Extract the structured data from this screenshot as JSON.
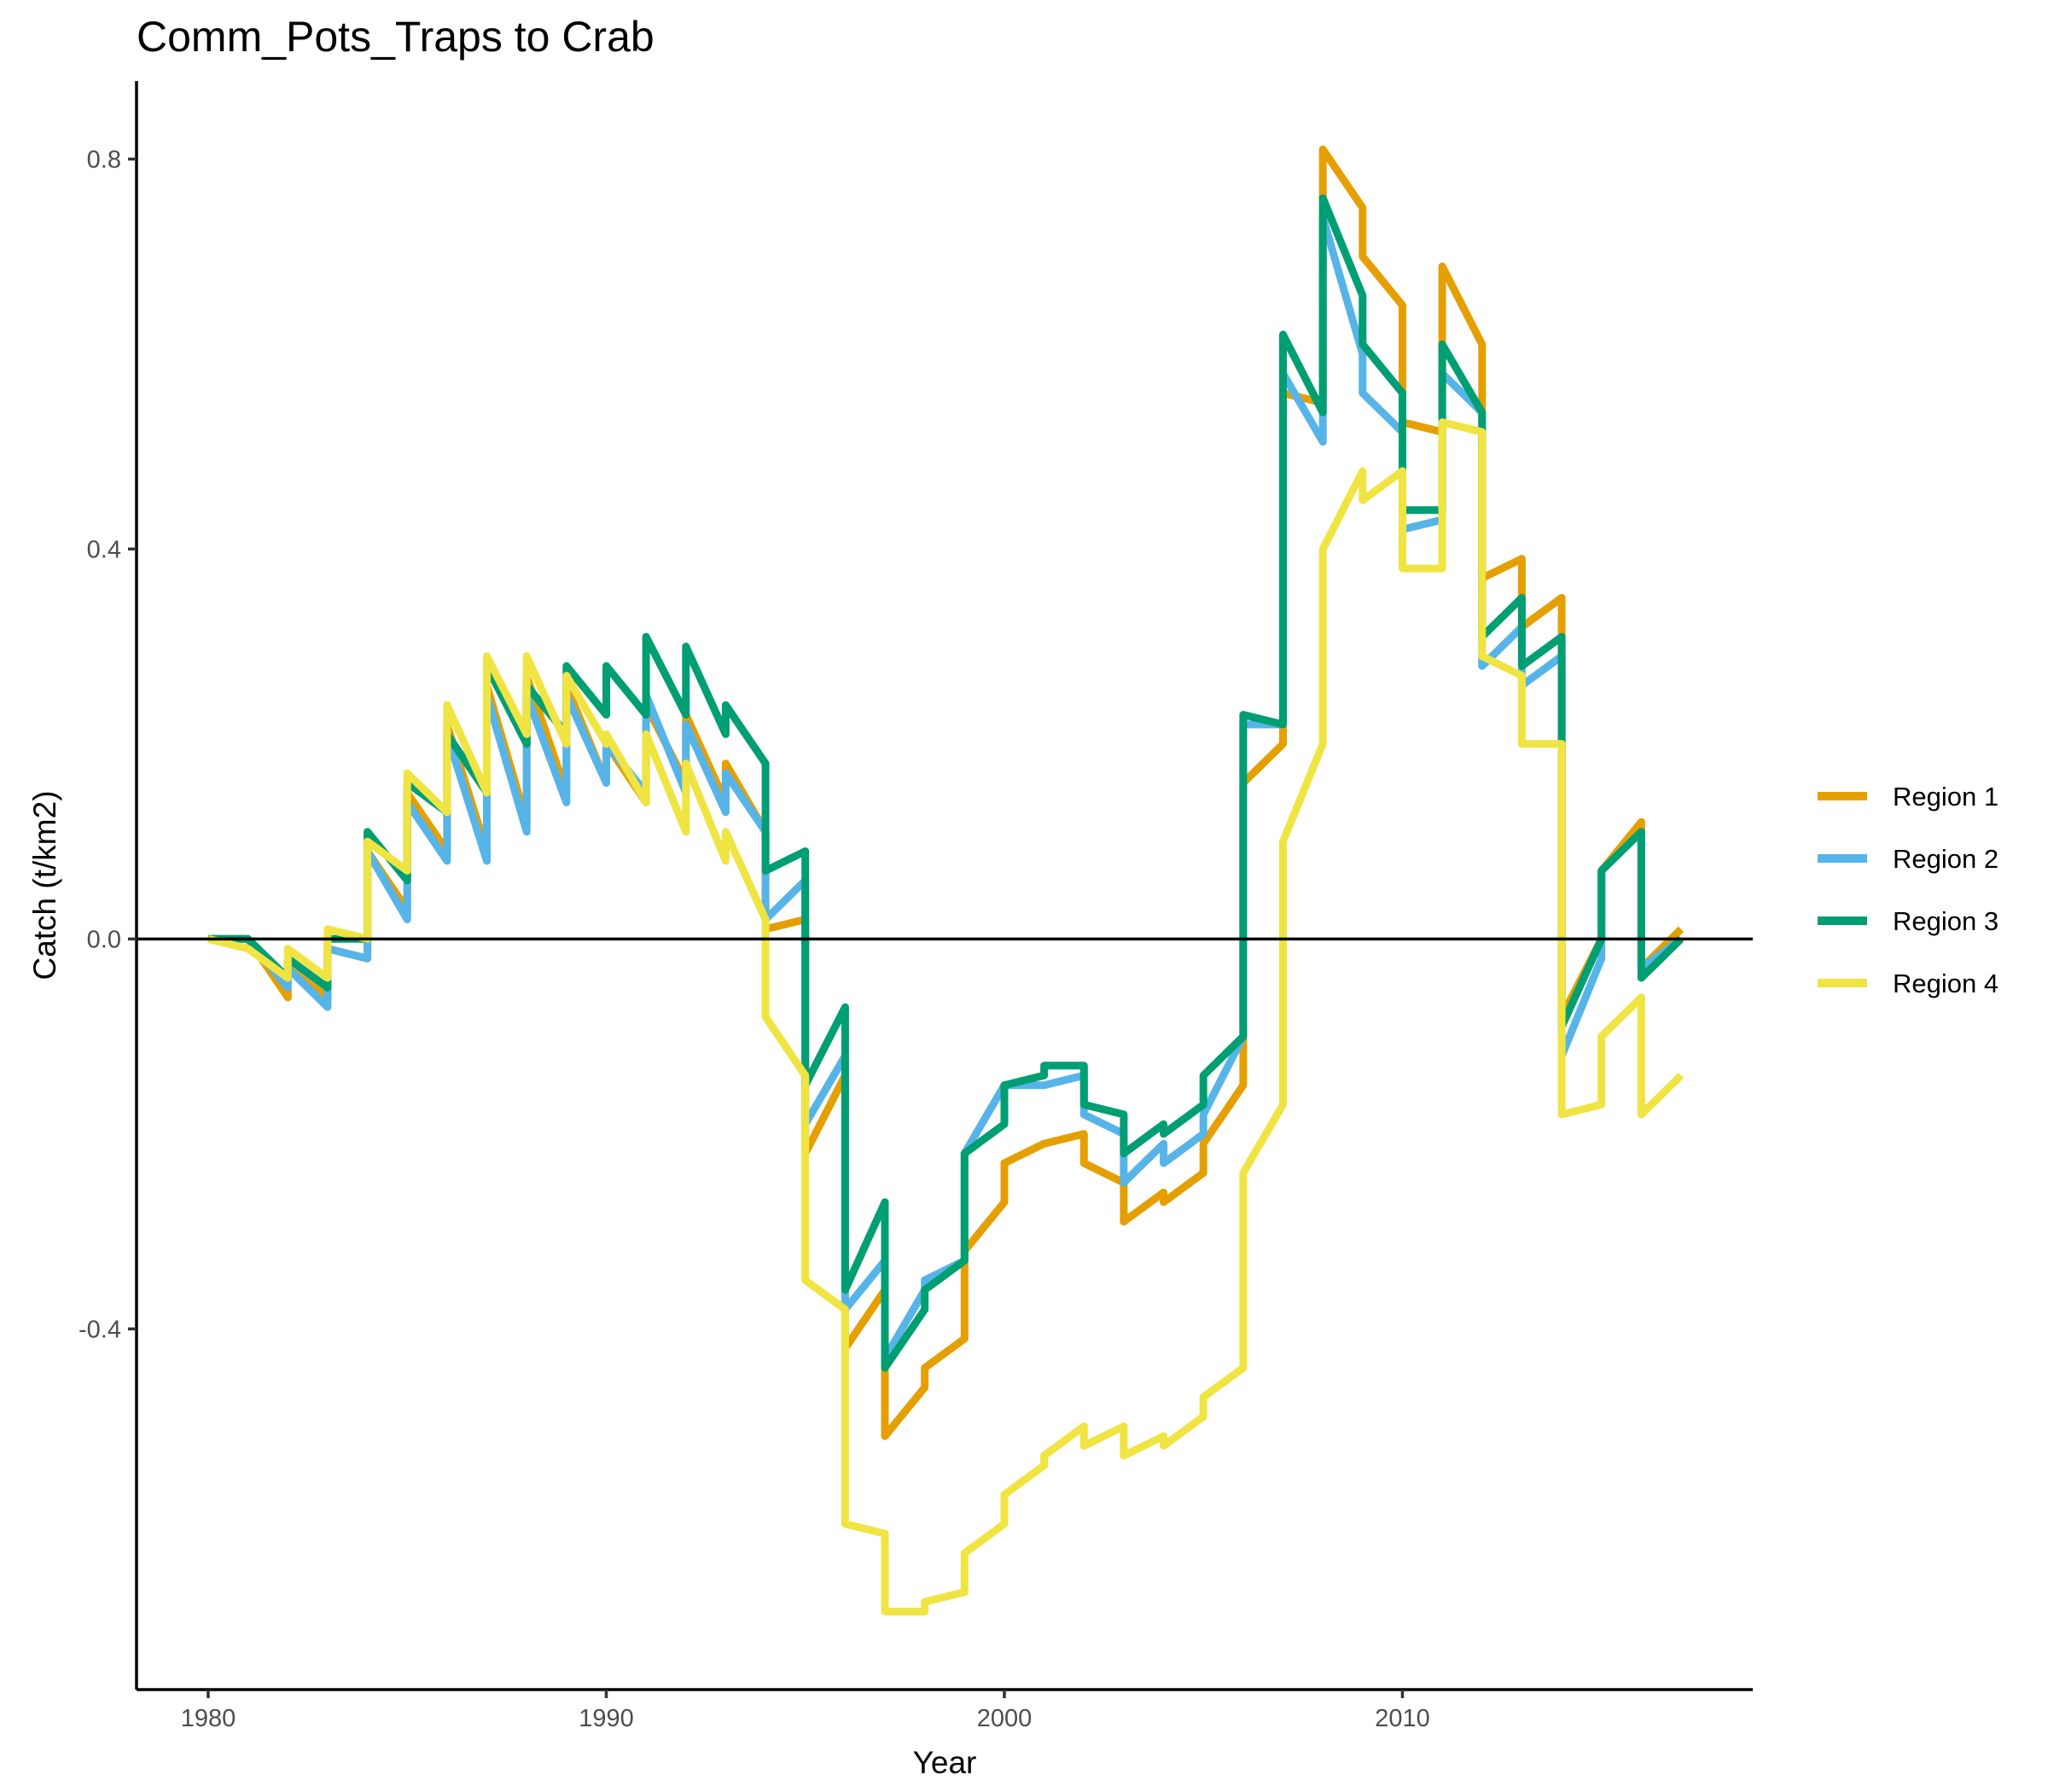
{
  "chart_data": {
    "type": "line",
    "title": "Comm_Pots_Traps to Crab",
    "xlabel": "Year",
    "ylabel": "Catch (t/km2)",
    "xlim": [
      1978.2,
      2018.8
    ],
    "ylim": [
      -0.77,
      0.88
    ],
    "xticks": [
      1980,
      1990,
      2000,
      2010
    ],
    "xtick_labels": [
      "1980",
      "1990",
      "2000",
      "2010"
    ],
    "yticks": [
      -0.4,
      0.0,
      0.4,
      0.8
    ],
    "ytick_labels": [
      "-0.4",
      "0.0",
      "0.4",
      "0.8"
    ],
    "hline": 0,
    "grid": false,
    "legend_position": "right",
    "series": [
      {
        "name": "Region 1",
        "color": "#E69F00",
        "x": [
          1980,
          1981,
          1982,
          1982,
          1983,
          1983,
          1984,
          1984,
          1985,
          1985,
          1986,
          1986,
          1987,
          1987,
          1988,
          1988,
          1989,
          1989,
          1990,
          1990,
          1991,
          1991,
          1992,
          1992,
          1993,
          1993,
          1994,
          1994,
          1995,
          1995,
          1996,
          1996,
          1997,
          1997,
          1998,
          1998,
          1999,
          1999,
          2000,
          2000,
          2001,
          2002,
          2002,
          2003,
          2003,
          2004,
          2004,
          2005,
          2005,
          2006,
          2006,
          2007,
          2007,
          2008,
          2008,
          2009,
          2009,
          2010,
          2010,
          2011,
          2011,
          2012,
          2012,
          2013,
          2013,
          2014,
          2014,
          2015,
          2015,
          2016,
          2016,
          2017
        ],
        "y": [
          0.0,
          0.0,
          -0.06,
          -0.03,
          -0.06,
          -0.01,
          -0.02,
          0.09,
          0.03,
          0.15,
          0.09,
          0.22,
          0.09,
          0.26,
          0.12,
          0.27,
          0.15,
          0.26,
          0.16,
          0.2,
          0.14,
          0.24,
          0.16,
          0.23,
          0.14,
          0.18,
          0.11,
          0.01,
          0.02,
          -0.22,
          -0.14,
          -0.42,
          -0.36,
          -0.51,
          -0.46,
          -0.44,
          -0.41,
          -0.32,
          -0.27,
          -0.23,
          -0.21,
          -0.2,
          -0.23,
          -0.25,
          -0.29,
          -0.26,
          -0.27,
          -0.24,
          -0.21,
          -0.15,
          0.16,
          0.2,
          0.56,
          0.55,
          0.81,
          0.75,
          0.7,
          0.65,
          0.53,
          0.52,
          0.69,
          0.61,
          0.37,
          0.39,
          0.32,
          0.35,
          -0.08,
          0.0,
          0.07,
          0.12,
          -0.03,
          0.01
        ]
      },
      {
        "name": "Region 2",
        "color": "#56B4E9",
        "x": [
          1980,
          1981,
          1982,
          1982,
          1983,
          1983,
          1984,
          1984,
          1985,
          1985,
          1986,
          1986,
          1987,
          1987,
          1988,
          1988,
          1989,
          1989,
          1990,
          1990,
          1991,
          1991,
          1992,
          1992,
          1993,
          1993,
          1994,
          1994,
          1995,
          1995,
          1996,
          1996,
          1997,
          1997,
          1998,
          1998,
          1999,
          1999,
          2000,
          2001,
          2002,
          2002,
          2003,
          2003,
          2004,
          2004,
          2005,
          2005,
          2006,
          2006,
          2007,
          2007,
          2008,
          2008,
          2009,
          2009,
          2010,
          2010,
          2011,
          2011,
          2012,
          2012,
          2013,
          2013,
          2014,
          2014,
          2015,
          2015,
          2016,
          2016,
          2017
        ],
        "y": [
          0.0,
          0.0,
          -0.05,
          -0.03,
          -0.07,
          -0.01,
          -0.02,
          0.09,
          0.02,
          0.14,
          0.08,
          0.21,
          0.08,
          0.25,
          0.11,
          0.25,
          0.14,
          0.25,
          0.16,
          0.2,
          0.15,
          0.25,
          0.15,
          0.22,
          0.13,
          0.17,
          0.11,
          0.02,
          0.06,
          -0.19,
          -0.12,
          -0.38,
          -0.33,
          -0.43,
          -0.36,
          -0.35,
          -0.33,
          -0.22,
          -0.15,
          -0.15,
          -0.14,
          -0.18,
          -0.2,
          -0.25,
          -0.21,
          -0.23,
          -0.2,
          -0.18,
          -0.1,
          0.22,
          0.22,
          0.58,
          0.51,
          0.74,
          0.6,
          0.56,
          0.52,
          0.42,
          0.43,
          0.58,
          0.54,
          0.28,
          0.32,
          0.26,
          0.29,
          -0.12,
          -0.02,
          0.07,
          0.11,
          -0.03,
          0.0
        ]
      },
      {
        "name": "Region 3",
        "color": "#009E73",
        "x": [
          1980,
          1981,
          1982,
          1982,
          1983,
          1983,
          1984,
          1984,
          1985,
          1985,
          1986,
          1986,
          1987,
          1987,
          1988,
          1988,
          1989,
          1989,
          1990,
          1990,
          1991,
          1991,
          1992,
          1992,
          1993,
          1993,
          1994,
          1994,
          1995,
          1995,
          1996,
          1996,
          1997,
          1997,
          1998,
          1998,
          1999,
          1999,
          2000,
          2000,
          2001,
          2001,
          2002,
          2002,
          2003,
          2003,
          2004,
          2004,
          2005,
          2005,
          2006,
          2006,
          2007,
          2007,
          2008,
          2008,
          2009,
          2009,
          2010,
          2010,
          2011,
          2011,
          2012,
          2012,
          2013,
          2013,
          2014,
          2014,
          2015,
          2015,
          2016,
          2016,
          2017
        ],
        "y": [
          0.0,
          0.0,
          -0.04,
          -0.02,
          -0.05,
          0.0,
          0.0,
          0.11,
          0.06,
          0.16,
          0.13,
          0.21,
          0.15,
          0.28,
          0.2,
          0.26,
          0.21,
          0.28,
          0.23,
          0.28,
          0.23,
          0.31,
          0.23,
          0.3,
          0.21,
          0.24,
          0.18,
          0.07,
          0.09,
          -0.15,
          -0.07,
          -0.36,
          -0.27,
          -0.44,
          -0.38,
          -0.36,
          -0.33,
          -0.22,
          -0.19,
          -0.15,
          -0.14,
          -0.13,
          -0.13,
          -0.17,
          -0.18,
          -0.22,
          -0.19,
          -0.2,
          -0.17,
          -0.14,
          -0.1,
          0.23,
          0.22,
          0.62,
          0.54,
          0.76,
          0.66,
          0.61,
          0.56,
          0.44,
          0.44,
          0.61,
          0.54,
          0.31,
          0.35,
          0.28,
          0.31,
          -0.09,
          0.0,
          0.07,
          0.11,
          -0.04,
          0.0
        ]
      },
      {
        "name": "Region 4",
        "color": "#F0E442",
        "x": [
          1980,
          1981,
          1982,
          1982,
          1983,
          1983,
          1984,
          1984,
          1985,
          1985,
          1986,
          1986,
          1987,
          1987,
          1988,
          1988,
          1989,
          1989,
          1990,
          1990,
          1991,
          1991,
          1992,
          1992,
          1993,
          1993,
          1994,
          1994,
          1995,
          1995,
          1996,
          1996,
          1997,
          1997,
          1998,
          1998,
          1999,
          1999,
          2000,
          2000,
          2001,
          2001,
          2002,
          2002,
          2003,
          2003,
          2004,
          2004,
          2005,
          2005,
          2006,
          2006,
          2007,
          2007,
          2008,
          2008,
          2009,
          2009,
          2010,
          2010,
          2011,
          2011,
          2012,
          2012,
          2013,
          2013,
          2014,
          2014,
          2015,
          2015,
          2016,
          2016,
          2017
        ],
        "y": [
          0.0,
          -0.01,
          -0.04,
          -0.01,
          -0.04,
          0.01,
          0.0,
          0.1,
          0.07,
          0.17,
          0.13,
          0.24,
          0.15,
          0.29,
          0.21,
          0.29,
          0.2,
          0.27,
          0.2,
          0.21,
          0.14,
          0.21,
          0.11,
          0.18,
          0.08,
          0.11,
          0.02,
          -0.08,
          -0.14,
          -0.35,
          -0.38,
          -0.6,
          -0.61,
          -0.69,
          -0.69,
          -0.68,
          -0.67,
          -0.63,
          -0.6,
          -0.57,
          -0.54,
          -0.53,
          -0.5,
          -0.52,
          -0.5,
          -0.53,
          -0.51,
          -0.52,
          -0.49,
          -0.47,
          -0.44,
          -0.24,
          -0.17,
          0.1,
          0.2,
          0.4,
          0.48,
          0.45,
          0.48,
          0.38,
          0.38,
          0.53,
          0.52,
          0.29,
          0.27,
          0.2,
          0.2,
          -0.18,
          -0.17,
          -0.1,
          -0.06,
          -0.18,
          -0.14
        ]
      }
    ]
  }
}
